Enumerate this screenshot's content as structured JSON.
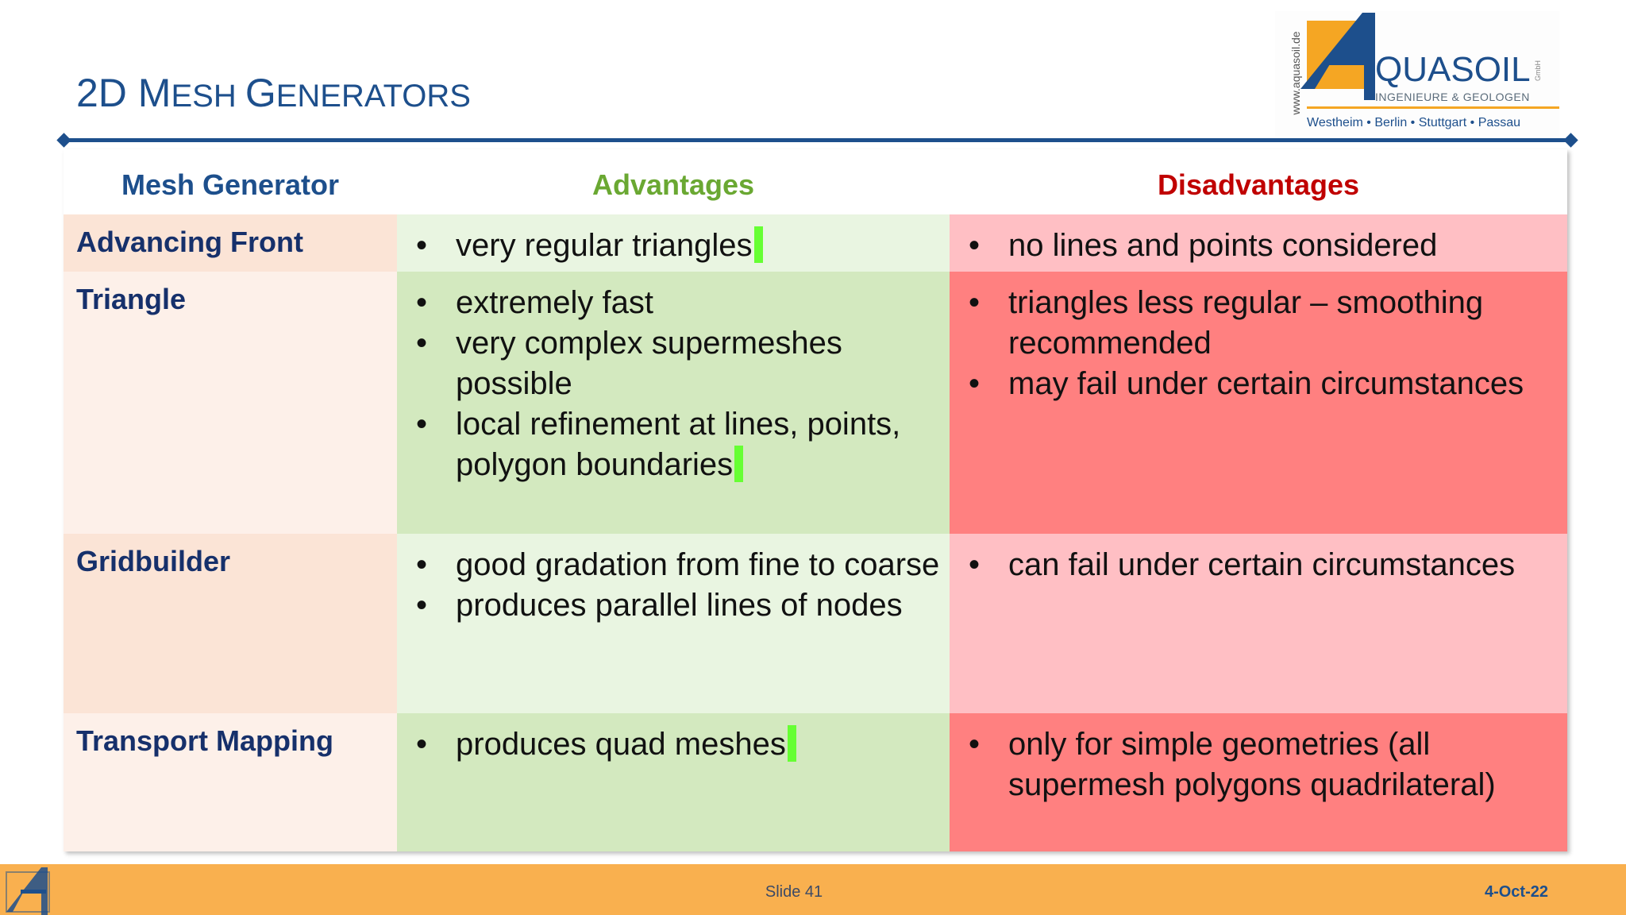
{
  "title": {
    "first": "2D M",
    "part2": "ESH ",
    "part3": "G",
    "part4": "ENERATORS"
  },
  "logo": {
    "url_text": "www.aquasoil.de",
    "brand": "QUASOIL",
    "legal_form": "GmbH",
    "subtitle": "INGENIEURE & GEOLOGEN",
    "cities": "Westheim • Berlin • Stuttgart • Passau",
    "icon": "aquasoil-a-logo-icon"
  },
  "table": {
    "headers": {
      "name": "Mesh Generator",
      "advantages": "Advantages",
      "disadvantages": "Disadvantages"
    },
    "rows": [
      {
        "name": "Advancing Front",
        "advantages": [
          "very regular triangles"
        ],
        "disadvantages": [
          "no lines and points considered"
        ]
      },
      {
        "name": "Triangle",
        "advantages": [
          "extremely fast",
          "very complex supermeshes possible",
          "local refinement at lines, points, polygon boundaries"
        ],
        "disadvantages": [
          "triangles less regular – smoothing recommended",
          "may fail under certain circumstances"
        ]
      },
      {
        "name": "Gridbuilder",
        "advantages": [
          "good gradation from fine to coarse",
          "produces parallel lines of nodes"
        ],
        "disadvantages": [
          "can fail under certain circumstances"
        ]
      },
      {
        "name": "Transport Mapping",
        "advantages": [
          "produces quad meshes"
        ],
        "disadvantages": [
          "only for simple geometries (all supermesh polygons quadrilateral)"
        ]
      }
    ]
  },
  "bullet_char": "•",
  "footer": {
    "slide_label": "Slide 41",
    "date": "4-Oct-22"
  },
  "colors": {
    "title_blue": "#1d4f8c",
    "advantages_green": "#6aa832",
    "disadvantages_red": "#c00000",
    "footer_orange": "#f9b04f",
    "marker_green": "#66ff33"
  }
}
